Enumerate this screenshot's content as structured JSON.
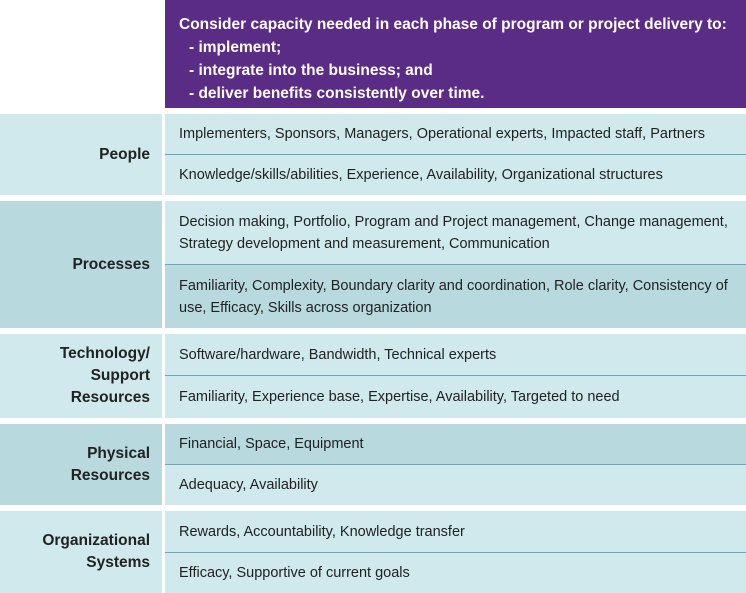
{
  "header": {
    "intro": "Consider capacity needed in each phase of program or project delivery to:",
    "bullets": [
      "- implement;",
      "- integrate into the business; and",
      "- deliver benefits consistently over time."
    ]
  },
  "colors": {
    "header_bg": "#5b2c86",
    "row_light": "#cfe9ec",
    "row_mid": "#b8d9de"
  },
  "rows": [
    {
      "label_lines": [
        "People"
      ],
      "items": [
        "Implementers, Sponsors, Managers, Operational experts, Impacted staff, Partners",
        "Knowledge/skills/abilities, Experience, Availability, Organizational structures"
      ]
    },
    {
      "label_lines": [
        "Processes"
      ],
      "items": [
        "Decision making, Portfolio, Program and Project management, Change management, Strategy development and measurement, Communication",
        "Familiarity, Complexity, Boundary clarity and coordination, Role clarity, Consistency of use, Efficacy, Skills across organization"
      ]
    },
    {
      "label_lines": [
        "Technology/",
        "Support",
        "Resources"
      ],
      "items": [
        "Software/hardware, Bandwidth, Technical experts",
        "Familiarity, Experience base, Expertise, Availability, Targeted to need"
      ]
    },
    {
      "label_lines": [
        "Physical",
        "Resources"
      ],
      "items": [
        "Financial, Space, Equipment",
        "Adequacy, Availability"
      ]
    },
    {
      "label_lines": [
        "Organizational",
        "Systems"
      ],
      "items": [
        "Rewards, Accountability, Knowledge transfer",
        "Efficacy, Supportive of current goals"
      ]
    }
  ]
}
